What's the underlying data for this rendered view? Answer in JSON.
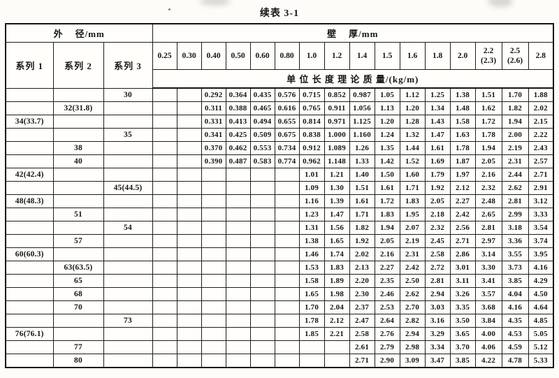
{
  "title": "续表 3-1",
  "table": {
    "od_header": "外    径/mm",
    "wt_header": "壁    厚/mm",
    "series_headers": [
      "系列 1",
      "系列 2",
      "系列 3"
    ],
    "thickness_columns": [
      "0.25",
      "0.30",
      "0.40",
      "0.50",
      "0.60",
      "0.80",
      "1.0",
      "1.2",
      "1.4",
      "1.5",
      "1.6",
      "1.8",
      "2.0",
      "2.2\n(2.3)",
      "2.5\n(2.6)",
      "2.8"
    ],
    "mass_header": "单 位 长 度 理 论 质 量/(kg/m)",
    "rows": [
      {
        "series1": "",
        "series2": "",
        "series3": "30",
        "values": [
          "",
          "",
          "0.292",
          "0.364",
          "0.435",
          "0.576",
          "0.715",
          "0.852",
          "0.987",
          "1.05",
          "1.12",
          "1.25",
          "1.38",
          "1.51",
          "1.70",
          "1.88"
        ]
      },
      {
        "series1": "",
        "series2": "32(31.8)",
        "series3": "",
        "values": [
          "",
          "",
          "0.311",
          "0.388",
          "0.465",
          "0.616",
          "0.765",
          "0.911",
          "1.056",
          "1.13",
          "1.20",
          "1.34",
          "1.48",
          "1.62",
          "1.82",
          "2.02"
        ]
      },
      {
        "series1": "34(33.7)",
        "series2": "",
        "series3": "",
        "values": [
          "",
          "",
          "0.331",
          "0.413",
          "0.494",
          "0.655",
          "0.814",
          "0.971",
          "1.125",
          "1.20",
          "1.28",
          "1.43",
          "1.58",
          "1.72",
          "1.94",
          "2.15"
        ]
      },
      {
        "series1": "",
        "series2": "",
        "series3": "35",
        "values": [
          "",
          "",
          "0.341",
          "0.425",
          "0.509",
          "0.675",
          "0.838",
          "1.000",
          "1.160",
          "1.24",
          "1.32",
          "1.47",
          "1.63",
          "1.78",
          "2.00",
          "2.22"
        ]
      },
      {
        "series1": "",
        "series2": "38",
        "series3": "",
        "values": [
          "",
          "",
          "0.370",
          "0.462",
          "0.553",
          "0.734",
          "0.912",
          "1.089",
          "1.26",
          "1.35",
          "1.44",
          "1.61",
          "1.78",
          "1.94",
          "2.19",
          "2.43"
        ]
      },
      {
        "series1": "",
        "series2": "40",
        "series3": "",
        "values": [
          "",
          "",
          "0.390",
          "0.487",
          "0.583",
          "0.774",
          "0.962",
          "1.148",
          "1.33",
          "1.42",
          "1.52",
          "1.69",
          "1.87",
          "2.05",
          "2.31",
          "2.57"
        ]
      },
      {
        "series1": "42(42.4)",
        "series2": "",
        "series3": "",
        "values": [
          "",
          "",
          "",
          "",
          "",
          "",
          "1.01",
          "1.21",
          "1.40",
          "1.50",
          "1.60",
          "1.79",
          "1.97",
          "2.16",
          "2.44",
          "2.71"
        ]
      },
      {
        "series1": "",
        "series2": "",
        "series3": "45(44.5)",
        "values": [
          "",
          "",
          "",
          "",
          "",
          "",
          "1.09",
          "1.30",
          "1.51",
          "1.61",
          "1.71",
          "1.92",
          "2.12",
          "2.32",
          "2.62",
          "2.91"
        ]
      },
      {
        "series1": "48(48.3)",
        "series2": "",
        "series3": "",
        "values": [
          "",
          "",
          "",
          "",
          "",
          "",
          "1.16",
          "1.39",
          "1.61",
          "1.72",
          "1.83",
          "2.05",
          "2.27",
          "2.48",
          "2.81",
          "3.12"
        ]
      },
      {
        "series1": "",
        "series2": "51",
        "series3": "",
        "values": [
          "",
          "",
          "",
          "",
          "",
          "",
          "1.23",
          "1.47",
          "1.71",
          "1.83",
          "1.95",
          "2.18",
          "2.42",
          "2.65",
          "2.99",
          "3.33"
        ]
      },
      {
        "series1": "",
        "series2": "",
        "series3": "54",
        "values": [
          "",
          "",
          "",
          "",
          "",
          "",
          "1.31",
          "1.56",
          "1.82",
          "1.94",
          "2.07",
          "2.32",
          "2.56",
          "2.81",
          "3.18",
          "3.54"
        ]
      },
      {
        "series1": "",
        "series2": "57",
        "series3": "",
        "values": [
          "",
          "",
          "",
          "",
          "",
          "",
          "1.38",
          "1.65",
          "1.92",
          "2.05",
          "2.19",
          "2.45",
          "2.71",
          "2.97",
          "3.36",
          "3.74"
        ]
      },
      {
        "series1": "60(60.3)",
        "series2": "",
        "series3": "",
        "values": [
          "",
          "",
          "",
          "",
          "",
          "",
          "1.46",
          "1.74",
          "2.02",
          "2.16",
          "2.31",
          "2.58",
          "2.86",
          "3.14",
          "3.55",
          "3.95"
        ]
      },
      {
        "series1": "",
        "series2": "63(63.5)",
        "series3": "",
        "values": [
          "",
          "",
          "",
          "",
          "",
          "",
          "1.53",
          "1.83",
          "2.13",
          "2.27",
          "2.42",
          "2.72",
          "3.01",
          "3.30",
          "3.73",
          "4.16"
        ]
      },
      {
        "series1": "",
        "series2": "65",
        "series3": "",
        "values": [
          "",
          "",
          "",
          "",
          "",
          "",
          "1.58",
          "1.89",
          "2.20",
          "2.35",
          "2.50",
          "2.81",
          "3.11",
          "3.41",
          "3.85",
          "4.29"
        ]
      },
      {
        "series1": "",
        "series2": "68",
        "series3": "",
        "values": [
          "",
          "",
          "",
          "",
          "",
          "",
          "1.65",
          "1.98",
          "2.30",
          "2.46",
          "2.62",
          "2.94",
          "3.26",
          "3.57",
          "4.04",
          "4.50"
        ]
      },
      {
        "series1": "",
        "series2": "70",
        "series3": "",
        "values": [
          "",
          "",
          "",
          "",
          "",
          "",
          "1.70",
          "2.04",
          "2.37",
          "2.53",
          "2.70",
          "3.03",
          "3.35",
          "3.68",
          "4.16",
          "4.64"
        ]
      },
      {
        "series1": "",
        "series2": "",
        "series3": "73",
        "values": [
          "",
          "",
          "",
          "",
          "",
          "",
          "1.78",
          "2.12",
          "2.47",
          "2.64",
          "2.82",
          "3.16",
          "3.50",
          "3.84",
          "4.35",
          "4.85"
        ]
      },
      {
        "series1": "76(76.1)",
        "series2": "",
        "series3": "",
        "values": [
          "",
          "",
          "",
          "",
          "",
          "",
          "1.85",
          "2.21",
          "2.58",
          "2.76",
          "2.94",
          "3.29",
          "3.65",
          "4.00",
          "4.53",
          "5.05"
        ]
      },
      {
        "series1": "",
        "series2": "77",
        "series3": "",
        "values": [
          "",
          "",
          "",
          "",
          "",
          "",
          "",
          "",
          "2.61",
          "2.79",
          "2.98",
          "3.34",
          "3.70",
          "4.06",
          "4.59",
          "5.12"
        ]
      },
      {
        "series1": "",
        "series2": "80",
        "series3": "",
        "values": [
          "",
          "",
          "",
          "",
          "",
          "",
          "",
          "",
          "2.71",
          "2.90",
          "3.09",
          "3.47",
          "3.85",
          "4.22",
          "4.78",
          "5.33"
        ]
      }
    ]
  }
}
